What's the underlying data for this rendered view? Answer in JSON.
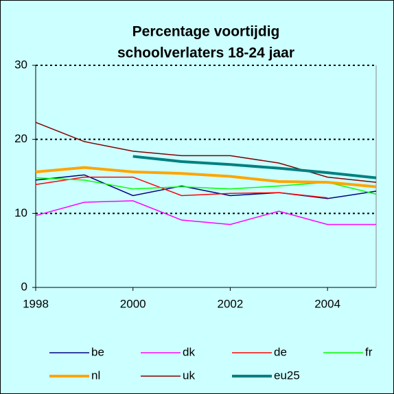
{
  "chart_data": {
    "type": "line",
    "title": [
      "Percentage voortijdig",
      "schoolverlaters 18-24 jaar"
    ],
    "x": [
      1998,
      1999,
      2000,
      2001,
      2002,
      2003,
      2004,
      2005
    ],
    "xlim": [
      1998,
      2005
    ],
    "xticks": [
      1998,
      2000,
      2002,
      2004
    ],
    "ylim": [
      0,
      30
    ],
    "yticks": [
      0,
      10,
      20,
      30
    ],
    "grid": true,
    "series": [
      {
        "name": "be",
        "color": "#000080",
        "width": 1.5,
        "values": [
          14.5,
          15.2,
          12.4,
          13.7,
          12.4,
          12.8,
          12.0,
          13.0
        ]
      },
      {
        "name": "dk",
        "color": "#ff00ff",
        "width": 1.5,
        "values": [
          9.7,
          11.5,
          11.7,
          9.1,
          8.5,
          10.3,
          8.5,
          8.5
        ]
      },
      {
        "name": "de",
        "color": "#ff0000",
        "width": 1.5,
        "values": [
          13.9,
          14.9,
          14.9,
          12.4,
          12.7,
          12.8,
          12.1,
          null
        ]
      },
      {
        "name": "fr",
        "color": "#00ff00",
        "width": 1.5,
        "values": [
          14.8,
          14.5,
          13.3,
          13.6,
          13.3,
          13.7,
          14.2,
          12.6
        ]
      },
      {
        "name": "nl",
        "color": "#ffa500",
        "width": 4,
        "values": [
          15.6,
          16.2,
          15.6,
          15.4,
          15.0,
          14.3,
          14.2,
          13.6
        ]
      },
      {
        "name": "uk",
        "color": "#800000",
        "width": 1.5,
        "values": [
          22.3,
          19.7,
          18.4,
          17.8,
          17.8,
          16.8,
          14.9,
          14.2
        ]
      },
      {
        "name": "eu25",
        "color": "#008080",
        "width": 4,
        "values": [
          null,
          null,
          17.7,
          17.0,
          16.6,
          16.1,
          15.5,
          14.8
        ]
      }
    ]
  }
}
